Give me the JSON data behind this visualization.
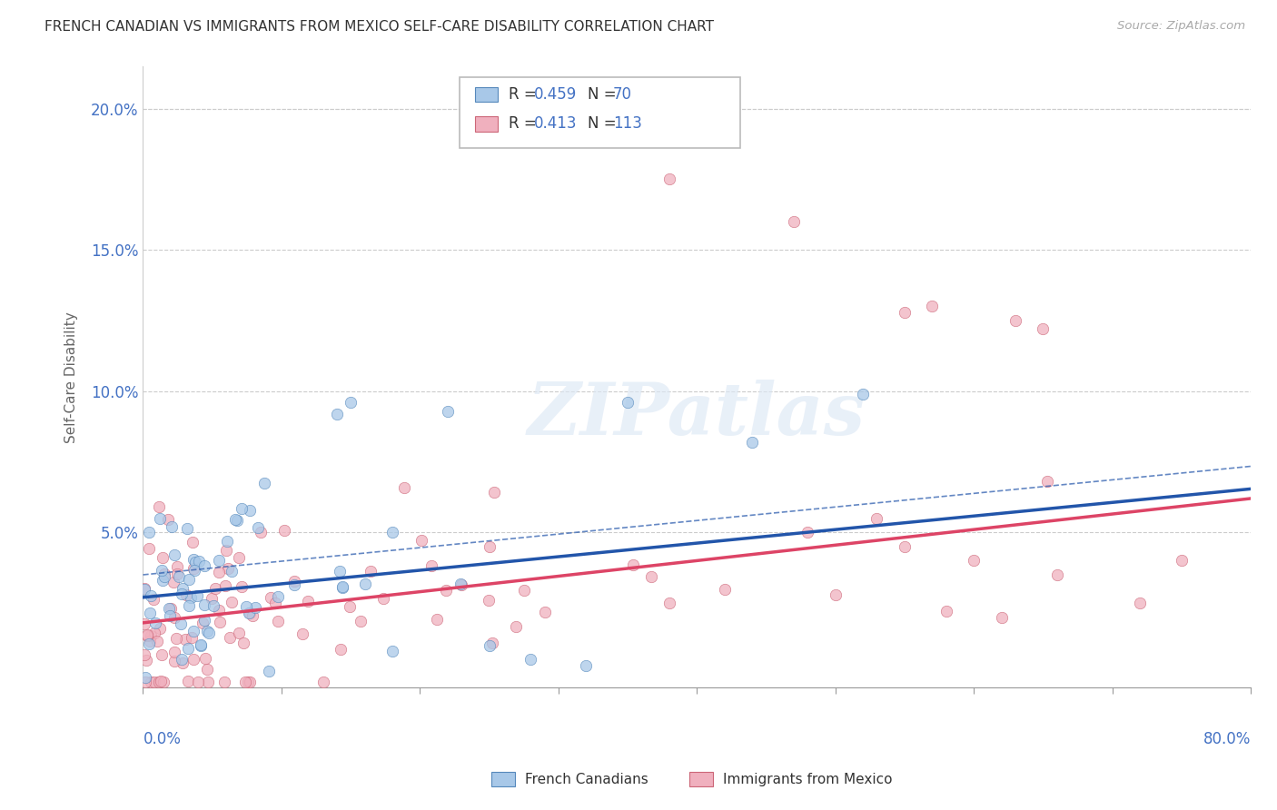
{
  "title": "FRENCH CANADIAN VS IMMIGRANTS FROM MEXICO SELF-CARE DISABILITY CORRELATION CHART",
  "source": "Source: ZipAtlas.com",
  "ylabel": "Self-Care Disability",
  "xlim": [
    0.0,
    0.8
  ],
  "ylim": [
    -0.005,
    0.215
  ],
  "yticks": [
    0.0,
    0.05,
    0.1,
    0.15,
    0.2
  ],
  "ytick_labels": [
    "",
    "5.0%",
    "10.0%",
    "15.0%",
    "20.0%"
  ],
  "ytick_color": "#4472c4",
  "fc_color": "#a8c8e8",
  "fc_edge_color": "#5588bb",
  "fc_line_color": "#2255aa",
  "mx_color": "#f0b0be",
  "mx_edge_color": "#cc6677",
  "mx_line_color": "#dd4466",
  "fc_slope": 0.048,
  "fc_intercept": 0.027,
  "mx_slope": 0.055,
  "mx_intercept": 0.018,
  "fc_dash_slope": 0.048,
  "fc_dash_intercept": 0.035,
  "watermark": "ZIPatlas",
  "background_color": "#ffffff",
  "grid_color": "#cccccc",
  "title_fontsize": 11,
  "axis_label_color": "#4472c4"
}
